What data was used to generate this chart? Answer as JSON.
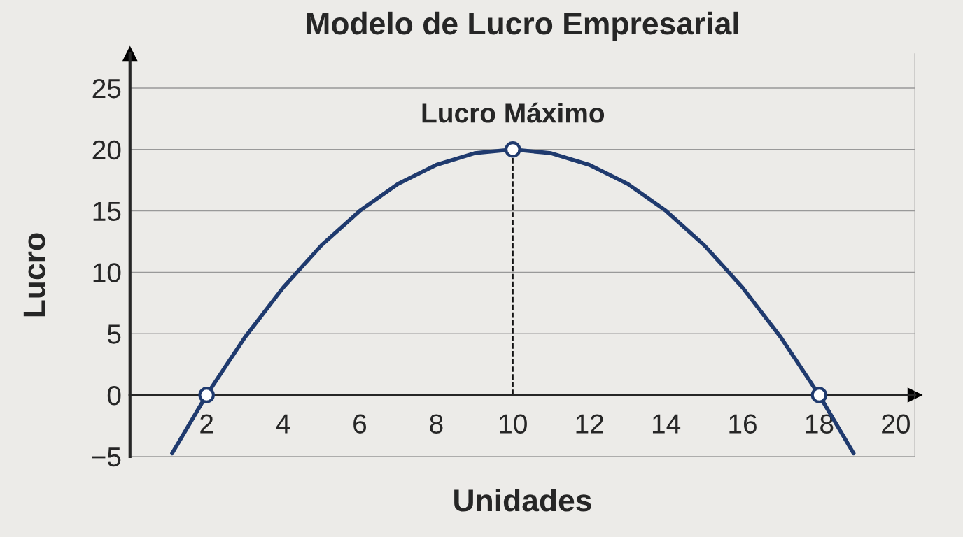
{
  "chart_data": {
    "type": "line",
    "title": "Modelo de Lucro Empresarial",
    "xlabel": "Unidades",
    "ylabel": "Lucro",
    "series": [
      {
        "color": "#1f3a6e",
        "x": [
          1.1,
          2,
          3,
          4,
          5,
          6,
          7,
          8,
          9,
          10,
          11,
          12,
          13,
          14,
          15,
          16,
          17,
          18,
          18.9
        ],
        "values": [
          -4.75,
          0,
          4.7,
          8.75,
          12.2,
          15,
          17.2,
          18.75,
          19.7,
          20,
          19.7,
          18.75,
          17.2,
          15,
          12.2,
          8.75,
          4.7,
          0,
          -4.75
        ]
      },
      {
        "type": "scatter",
        "color": "#1f3a6e",
        "marker": "circle",
        "x": [
          2,
          10,
          18
        ],
        "values": [
          0,
          20,
          0
        ]
      }
    ],
    "ref_lines": [
      {
        "axis": "x",
        "value": 10,
        "color": "#111111",
        "line_style": "dashed"
      }
    ],
    "annotations": [
      {
        "text": "Lucro Máximo",
        "x": 10,
        "y": 20
      }
    ],
    "xlim": [
      0,
      20.5
    ],
    "xticks": [
      2,
      4,
      6,
      8,
      10,
      12,
      14,
      16,
      18,
      20
    ],
    "ylim": [
      -5,
      27.8
    ],
    "yticks": [
      -5,
      0,
      5,
      10,
      15,
      20,
      25
    ],
    "grid": "y",
    "legend": false
  }
}
